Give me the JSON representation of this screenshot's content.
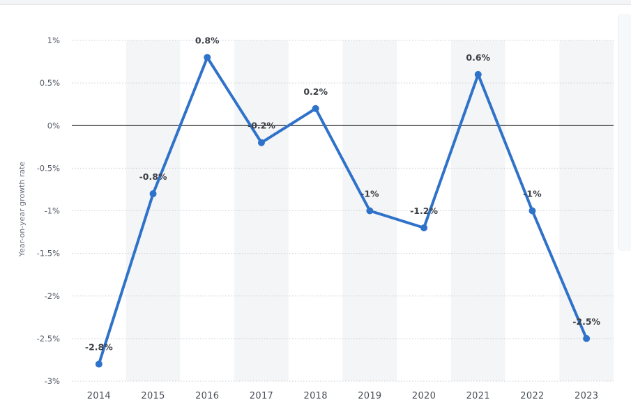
{
  "chart_data": {
    "type": "line",
    "ylabel": "Year-on-year growth rate",
    "x": [
      "2014",
      "2015",
      "2016",
      "2017",
      "2018",
      "2019",
      "2020",
      "2021",
      "2022",
      "2023"
    ],
    "series": [
      {
        "values": [
          -2.8,
          -0.8,
          0.8,
          -0.2,
          0.2,
          -1.0,
          -1.2,
          0.6,
          -1.0,
          -2.5
        ]
      }
    ],
    "data_labels": [
      "-2.8%",
      "-0.8%",
      "0.8%",
      "-0.2%",
      "0.2%",
      "-1%",
      "-1.2%",
      "0.6%",
      "-1%",
      "-2.5%"
    ],
    "y_ticks": [
      {
        "value": 1,
        "label": "1%"
      },
      {
        "value": 0.5,
        "label": "0.5%"
      },
      {
        "value": 0,
        "label": "0%"
      },
      {
        "value": -0.5,
        "label": "-0.5%"
      },
      {
        "value": -1,
        "label": "-1%"
      },
      {
        "value": -1.5,
        "label": "-1.5%"
      },
      {
        "value": -2,
        "label": "-2%"
      },
      {
        "value": -2.5,
        "label": "-2.5%"
      },
      {
        "value": -3,
        "label": "-3%"
      }
    ],
    "ylim": [
      -3,
      1
    ],
    "grid": true,
    "line_color": "#2f72c9",
    "band_color": "#f4f5f7",
    "zero_line_color": "#2b2b2b"
  }
}
